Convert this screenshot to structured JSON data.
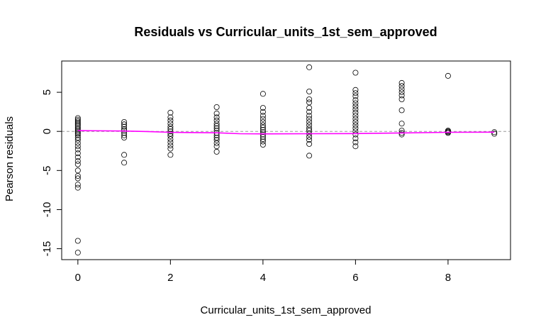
{
  "chart_data": {
    "type": "scatter",
    "title": "Residuals vs Curricular_units_1st_sem_approved",
    "xlabel": "Curricular_units_1st_sem_approved",
    "ylabel": "Pearson residuals",
    "xlim": [
      -0.35,
      9.35
    ],
    "ylim": [
      -16.4,
      9.0
    ],
    "x_ticks": [
      0,
      2,
      4,
      6,
      8
    ],
    "y_ticks": [
      -15,
      -10,
      -5,
      0,
      5
    ],
    "reference_line": {
      "y": 0,
      "style": "dashed",
      "color": "#9a9a9a"
    },
    "smoother": {
      "color": "#ff00ff",
      "x": [
        0,
        1,
        1.5,
        2,
        3,
        3.5,
        4,
        5,
        6,
        7,
        8,
        9
      ],
      "y": [
        0.1,
        0.05,
        -0.02,
        -0.12,
        -0.18,
        -0.3,
        -0.32,
        -0.3,
        -0.28,
        -0.2,
        -0.12,
        -0.1
      ]
    },
    "series": [
      {
        "marker": "open-circle",
        "color": "#000000",
        "points": [
          [
            0,
            1.7
          ],
          [
            0,
            1.5
          ],
          [
            0,
            1.3
          ],
          [
            0,
            1.1
          ],
          [
            0,
            0.9
          ],
          [
            0,
            0.7
          ],
          [
            0,
            0.5
          ],
          [
            0,
            0.3
          ],
          [
            0,
            0.1
          ],
          [
            0,
            -0.1
          ],
          [
            0,
            -0.3
          ],
          [
            0,
            -0.5
          ],
          [
            0,
            -0.8
          ],
          [
            0,
            -1.1
          ],
          [
            0,
            -1.5
          ],
          [
            0,
            -1.9
          ],
          [
            0,
            -2.3
          ],
          [
            0,
            -2.8
          ],
          [
            0,
            -3.3
          ],
          [
            0,
            -3.8
          ],
          [
            0,
            -4.2
          ],
          [
            0,
            -5.0
          ],
          [
            0,
            -5.7
          ],
          [
            0,
            -6.0
          ],
          [
            0,
            -6.8
          ],
          [
            0,
            -7.2
          ],
          [
            0,
            -14.0
          ],
          [
            0,
            -15.5
          ],
          [
            1,
            1.2
          ],
          [
            1,
            0.9
          ],
          [
            1,
            0.6
          ],
          [
            1,
            0.3
          ],
          [
            1,
            0.1
          ],
          [
            1,
            -0.2
          ],
          [
            1,
            -0.5
          ],
          [
            1,
            -0.8
          ],
          [
            1,
            -3.0
          ],
          [
            1,
            -4.0
          ],
          [
            2,
            2.4
          ],
          [
            2,
            1.8
          ],
          [
            2,
            1.4
          ],
          [
            2,
            1.0
          ],
          [
            2,
            0.6
          ],
          [
            2,
            0.3
          ],
          [
            2,
            0.0
          ],
          [
            2,
            -0.3
          ],
          [
            2,
            -0.6
          ],
          [
            2,
            -1.0
          ],
          [
            2,
            -1.4
          ],
          [
            2,
            -1.8
          ],
          [
            2,
            -2.2
          ],
          [
            2,
            -3.0
          ],
          [
            3,
            3.1
          ],
          [
            3,
            2.3
          ],
          [
            3,
            1.8
          ],
          [
            3,
            1.4
          ],
          [
            3,
            1.0
          ],
          [
            3,
            0.7
          ],
          [
            3,
            0.4
          ],
          [
            3,
            0.1
          ],
          [
            3,
            -0.2
          ],
          [
            3,
            -0.5
          ],
          [
            3,
            -0.8
          ],
          [
            3,
            -1.1
          ],
          [
            3,
            -1.5
          ],
          [
            3,
            -1.9
          ],
          [
            3,
            -2.6
          ],
          [
            4,
            4.8
          ],
          [
            4,
            3.0
          ],
          [
            4,
            2.5
          ],
          [
            4,
            2.0
          ],
          [
            4,
            1.6
          ],
          [
            4,
            1.2
          ],
          [
            4,
            0.8
          ],
          [
            4,
            0.5
          ],
          [
            4,
            0.2
          ],
          [
            4,
            -0.1
          ],
          [
            4,
            -0.4
          ],
          [
            4,
            -0.7
          ],
          [
            4,
            -1.0
          ],
          [
            4,
            -1.3
          ],
          [
            4,
            -1.7
          ],
          [
            5,
            8.2
          ],
          [
            5,
            5.1
          ],
          [
            5,
            4.1
          ],
          [
            5,
            3.7
          ],
          [
            5,
            3.0
          ],
          [
            5,
            2.5
          ],
          [
            5,
            2.0
          ],
          [
            5,
            1.6
          ],
          [
            5,
            1.2
          ],
          [
            5,
            0.8
          ],
          [
            5,
            0.4
          ],
          [
            5,
            0.1
          ],
          [
            5,
            -0.3
          ],
          [
            5,
            -0.7
          ],
          [
            5,
            -1.1
          ],
          [
            5,
            -1.6
          ],
          [
            5,
            -3.1
          ],
          [
            6,
            7.5
          ],
          [
            6,
            5.3
          ],
          [
            6,
            4.9
          ],
          [
            6,
            4.5
          ],
          [
            6,
            4.0
          ],
          [
            6,
            3.6
          ],
          [
            6,
            3.2
          ],
          [
            6,
            2.8
          ],
          [
            6,
            2.4
          ],
          [
            6,
            2.0
          ],
          [
            6,
            1.6
          ],
          [
            6,
            1.2
          ],
          [
            6,
            0.8
          ],
          [
            6,
            0.4
          ],
          [
            6,
            0.0
          ],
          [
            6,
            -0.4
          ],
          [
            6,
            -0.9
          ],
          [
            6,
            -1.4
          ],
          [
            6,
            -1.9
          ],
          [
            7,
            6.2
          ],
          [
            7,
            5.8
          ],
          [
            7,
            5.4
          ],
          [
            7,
            5.0
          ],
          [
            7,
            4.6
          ],
          [
            7,
            4.1
          ],
          [
            7,
            2.7
          ],
          [
            7,
            1.0
          ],
          [
            7,
            0.1
          ],
          [
            7,
            -0.2
          ],
          [
            7,
            -0.4
          ],
          [
            8,
            7.1
          ],
          [
            8,
            0.1
          ],
          [
            8,
            0.0
          ],
          [
            8,
            -0.1
          ],
          [
            8,
            -0.2
          ],
          [
            9,
            -0.1
          ],
          [
            9,
            -0.3
          ]
        ]
      }
    ]
  }
}
